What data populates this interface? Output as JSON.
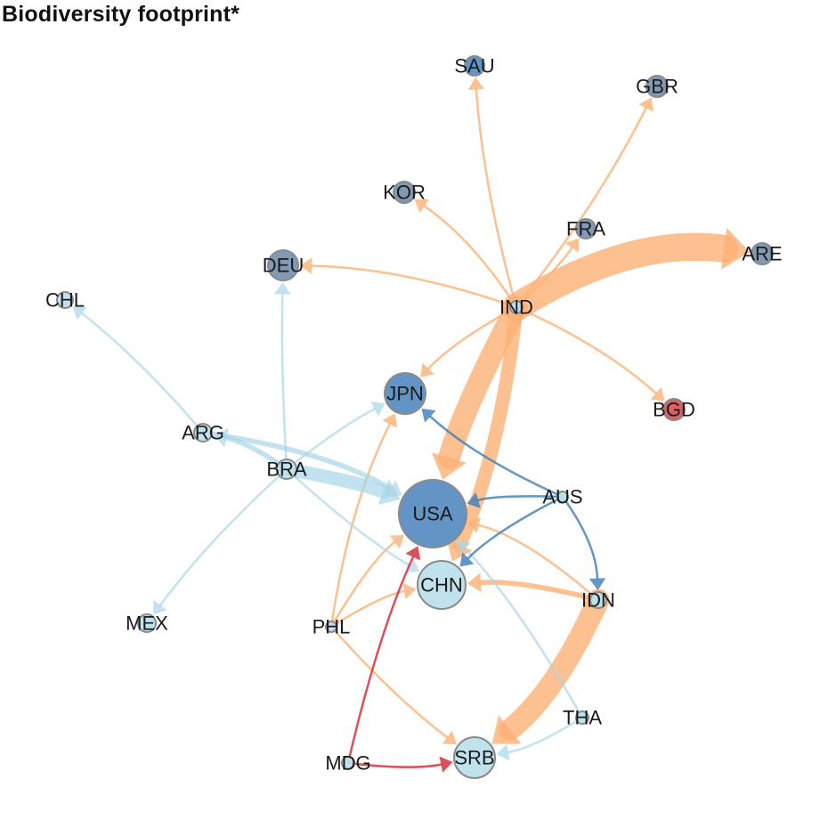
{
  "title": "Biodiversity footprint*",
  "colors": {
    "orange": "#FDB074",
    "light_blue": "#A8D5E8",
    "dark_blue": "#3B7DB8",
    "red": "#D7313A",
    "node_blue": "#5A8FC2",
    "node_grayblue": "#7A94AE",
    "node_light": "#BDE0EC",
    "node_red": "#D9575B"
  },
  "nodes": [
    {
      "id": "SAU",
      "fill": "node_blue"
    },
    {
      "id": "GBR",
      "fill": "node_grayblue"
    },
    {
      "id": "KOR",
      "fill": "node_grayblue"
    },
    {
      "id": "FRA",
      "fill": "node_grayblue"
    },
    {
      "id": "ARE",
      "fill": "node_grayblue"
    },
    {
      "id": "DEU",
      "fill": "node_grayblue"
    },
    {
      "id": "CHL",
      "fill": "node_light"
    },
    {
      "id": "IND",
      "fill": "node_light"
    },
    {
      "id": "JPN",
      "fill": "node_blue"
    },
    {
      "id": "BGD",
      "fill": "node_red"
    },
    {
      "id": "ARG",
      "fill": "node_light"
    },
    {
      "id": "BRA",
      "fill": "node_light"
    },
    {
      "id": "AUS",
      "fill": "node_light"
    },
    {
      "id": "USA",
      "fill": "node_blue"
    },
    {
      "id": "CHN",
      "fill": "node_light"
    },
    {
      "id": "IDN",
      "fill": "node_light"
    },
    {
      "id": "MEX",
      "fill": "node_light"
    },
    {
      "id": "PHL",
      "fill": "node_light"
    },
    {
      "id": "THA",
      "fill": "node_light"
    },
    {
      "id": "MDG",
      "fill": "node_light"
    },
    {
      "id": "SRB",
      "fill": "node_light"
    }
  ],
  "edges": [
    {
      "from": "IND",
      "to": "ARE",
      "color": "orange",
      "weight": 10
    },
    {
      "from": "IND",
      "to": "USA",
      "color": "orange",
      "weight": 8
    },
    {
      "from": "IND",
      "to": "CHN",
      "color": "orange",
      "weight": 5
    },
    {
      "from": "IND",
      "to": "SAU",
      "color": "orange",
      "weight": 1
    },
    {
      "from": "IND",
      "to": "GBR",
      "color": "orange",
      "weight": 1
    },
    {
      "from": "IND",
      "to": "KOR",
      "color": "orange",
      "weight": 1
    },
    {
      "from": "IND",
      "to": "FRA",
      "color": "orange",
      "weight": 1
    },
    {
      "from": "IND",
      "to": "DEU",
      "color": "orange",
      "weight": 1
    },
    {
      "from": "IND",
      "to": "JPN",
      "color": "orange",
      "weight": 1
    },
    {
      "from": "IND",
      "to": "BGD",
      "color": "orange",
      "weight": 1
    },
    {
      "from": "IDN",
      "to": "SRB",
      "color": "orange",
      "weight": 8
    },
    {
      "from": "IDN",
      "to": "CHN",
      "color": "orange",
      "weight": 2
    },
    {
      "from": "IDN",
      "to": "USA",
      "color": "orange",
      "weight": 1
    },
    {
      "from": "PHL",
      "to": "JPN",
      "color": "orange",
      "weight": 1
    },
    {
      "from": "PHL",
      "to": "USA",
      "color": "orange",
      "weight": 1
    },
    {
      "from": "PHL",
      "to": "CHN",
      "color": "orange",
      "weight": 1
    },
    {
      "from": "PHL",
      "to": "SRB",
      "color": "orange",
      "weight": 1
    },
    {
      "from": "BRA",
      "to": "USA",
      "color": "light_blue",
      "weight": 5
    },
    {
      "from": "BRA",
      "to": "ARG",
      "color": "light_blue",
      "weight": 2
    },
    {
      "from": "BRA",
      "to": "DEU",
      "color": "light_blue",
      "weight": 1
    },
    {
      "from": "BRA",
      "to": "JPN",
      "color": "light_blue",
      "weight": 1
    },
    {
      "from": "BRA",
      "to": "MEX",
      "color": "light_blue",
      "weight": 1
    },
    {
      "from": "BRA",
      "to": "CHN",
      "color": "light_blue",
      "weight": 1
    },
    {
      "from": "ARG",
      "to": "CHL",
      "color": "light_blue",
      "weight": 1
    },
    {
      "from": "ARG",
      "to": "USA",
      "color": "light_blue",
      "weight": 2
    },
    {
      "from": "THA",
      "to": "SRB",
      "color": "light_blue",
      "weight": 1
    },
    {
      "from": "THA",
      "to": "USA",
      "color": "light_blue",
      "weight": 1
    },
    {
      "from": "AUS",
      "to": "JPN",
      "color": "dark_blue",
      "weight": 1
    },
    {
      "from": "AUS",
      "to": "USA",
      "color": "dark_blue",
      "weight": 1
    },
    {
      "from": "AUS",
      "to": "CHN",
      "color": "dark_blue",
      "weight": 1
    },
    {
      "from": "AUS",
      "to": "IDN",
      "color": "dark_blue",
      "weight": 1
    },
    {
      "from": "MDG",
      "to": "USA",
      "color": "red",
      "weight": 1
    },
    {
      "from": "MDG",
      "to": "SRB",
      "color": "red",
      "weight": 1
    }
  ]
}
